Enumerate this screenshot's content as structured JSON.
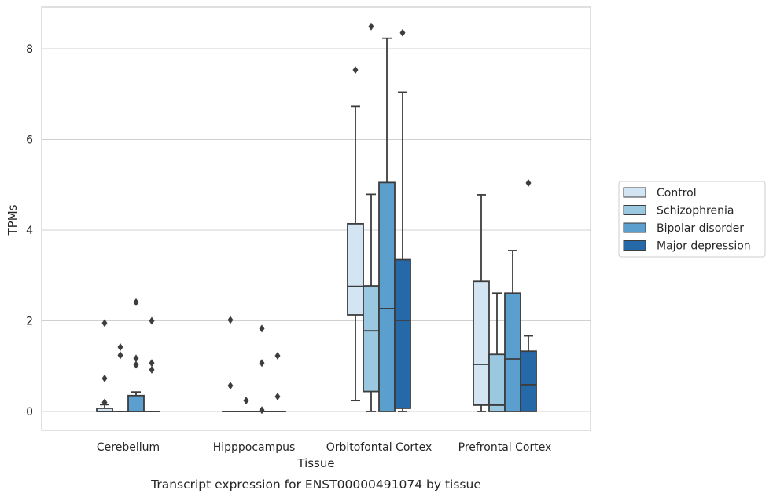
{
  "caption": "Transcript expression for ENST00000491074 by tissue",
  "chart_data": {
    "type": "box",
    "xlabel": "Tissue",
    "ylabel": "TPMs",
    "ylim": [
      -0.4,
      8.9
    ],
    "yticks": [
      0,
      2,
      4,
      6,
      8
    ],
    "grid": "horizontal",
    "legend_position": "right",
    "categories": [
      "Cerebellum",
      "Hipppocampus",
      "Orbitofontal Cortex",
      "Prefrontal Cortex"
    ],
    "series": [
      {
        "name": "Control",
        "color": "#d3e4f3",
        "boxes": [
          {
            "min": 0,
            "q1": 0,
            "median": 0,
            "q3": 0.07,
            "max": 0.15,
            "outliers": [
              0.2,
              0.73,
              1.95
            ]
          },
          {
            "min": 0,
            "q1": 0,
            "median": 0,
            "q3": 0,
            "max": 0,
            "outliers": [
              0.57,
              2.02
            ]
          },
          {
            "min": 0.24,
            "q1": 2.13,
            "median": 2.76,
            "q3": 4.14,
            "max": 6.73,
            "outliers": [
              7.53
            ]
          },
          {
            "min": 0,
            "q1": 0.14,
            "median": 1.04,
            "q3": 2.87,
            "max": 4.78,
            "outliers": []
          }
        ]
      },
      {
        "name": "Schizophrenia",
        "color": "#9ac8e0",
        "boxes": [
          {
            "min": 0,
            "q1": 0,
            "median": 0,
            "q3": 0,
            "max": 0,
            "outliers": [
              1.24,
              1.42
            ]
          },
          {
            "min": 0,
            "q1": 0,
            "median": 0,
            "q3": 0,
            "max": 0,
            "outliers": [
              0.24
            ]
          },
          {
            "min": 0,
            "q1": 0.44,
            "median": 1.78,
            "q3": 2.77,
            "max": 4.79,
            "outliers": [
              8.49
            ]
          },
          {
            "min": 0,
            "q1": 0,
            "median": 0.14,
            "q3": 1.26,
            "max": 2.61,
            "outliers": []
          }
        ]
      },
      {
        "name": "Bipolar disorder",
        "color": "#5a9fcd",
        "boxes": [
          {
            "min": 0,
            "q1": 0,
            "median": 0,
            "q3": 0.35,
            "max": 0.43,
            "outliers": [
              1.03,
              1.17,
              2.41
            ]
          },
          {
            "min": 0,
            "q1": 0,
            "median": 0,
            "q3": 0,
            "max": 0,
            "outliers": [
              0.03,
              1.07,
              1.83
            ]
          },
          {
            "min": 0,
            "q1": 0,
            "median": 2.27,
            "q3": 5.05,
            "max": 8.23,
            "outliers": []
          },
          {
            "min": 0,
            "q1": 0,
            "median": 1.16,
            "q3": 2.61,
            "max": 3.55,
            "outliers": []
          }
        ]
      },
      {
        "name": "Major depression",
        "color": "#2669a8",
        "boxes": [
          {
            "min": 0,
            "q1": 0,
            "median": 0,
            "q3": 0,
            "max": 0,
            "outliers": [
              0.92,
              1.07,
              2.0
            ]
          },
          {
            "min": 0,
            "q1": 0,
            "median": 0,
            "q3": 0,
            "max": 0,
            "outliers": [
              0.33,
              1.23
            ]
          },
          {
            "min": 0,
            "q1": 0.07,
            "median": 2.01,
            "q3": 3.35,
            "max": 7.04,
            "outliers": [
              8.35
            ]
          },
          {
            "min": 0,
            "q1": 0,
            "median": 0.59,
            "q3": 1.33,
            "max": 1.67,
            "outliers": [
              5.04
            ]
          }
        ]
      }
    ]
  }
}
